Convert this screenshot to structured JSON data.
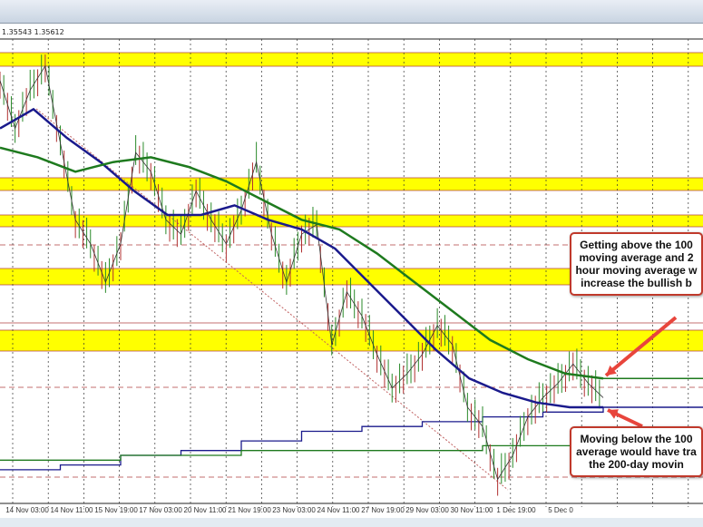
{
  "header": {
    "ohlc_text": "1.35543 1.35612"
  },
  "annotations": {
    "top": [
      "Getting above the 100",
      "moving average and 2",
      "hour moving average w",
      "increase the bullish b"
    ],
    "bottom": [
      "Moving below the 100",
      "average would have tra",
      "the 200-day movin"
    ]
  },
  "colors": {
    "highlight_band": "#ffff00",
    "ma_100": "#1a1a8c",
    "ma_200": "#1e7a1e",
    "price": "#333333",
    "arrow": "#e8453c",
    "trendline": "#c06060"
  },
  "chart_data": {
    "type": "line",
    "x_tick_labels": [
      "14 Nov 03:00",
      "14 Nov 11:00",
      "15 Nov 19:00",
      "17 Nov 03:00",
      "20 Nov 11:00",
      "21 Nov 19:00",
      "23 Nov 03:00",
      "24 Nov 11:00",
      "27 Nov 19:00",
      "29 Nov 03:00",
      "30 Nov 11:00",
      "1 Dec 19:00",
      "5 Dec 0"
    ],
    "y_scale": "relative level 0-100 (no y-axis shown)",
    "grid": true,
    "series": [
      {
        "role": "price",
        "values": [
          88,
          78,
          86,
          91,
          75,
          59,
          54,
          46,
          54,
          73,
          69,
          59,
          56,
          65,
          59,
          54,
          61,
          71,
          56,
          46,
          56,
          58,
          33,
          44,
          39,
          31,
          24,
          27,
          31,
          37,
          33,
          20,
          16,
          5,
          10,
          18,
          22,
          25,
          29,
          25,
          22
        ]
      },
      {
        "role": "100-hour MA",
        "values": [
          78,
          82,
          76,
          71,
          65,
          60,
          60,
          62,
          59,
          57,
          53,
          46,
          39,
          32,
          26,
          23,
          21,
          20,
          20
        ]
      },
      {
        "role": "200-hour MA",
        "values": [
          74,
          72,
          69,
          71,
          72,
          70,
          67,
          63,
          59,
          57,
          52,
          46,
          40,
          34,
          30,
          27,
          26
        ]
      },
      {
        "role": "100-day MA",
        "values": [
          7,
          8,
          10,
          11,
          13,
          15,
          16,
          17,
          18,
          19,
          20
        ]
      },
      {
        "role": "200-day MA",
        "values": [
          9,
          10,
          11,
          11,
          12,
          12
        ]
      }
    ]
  }
}
